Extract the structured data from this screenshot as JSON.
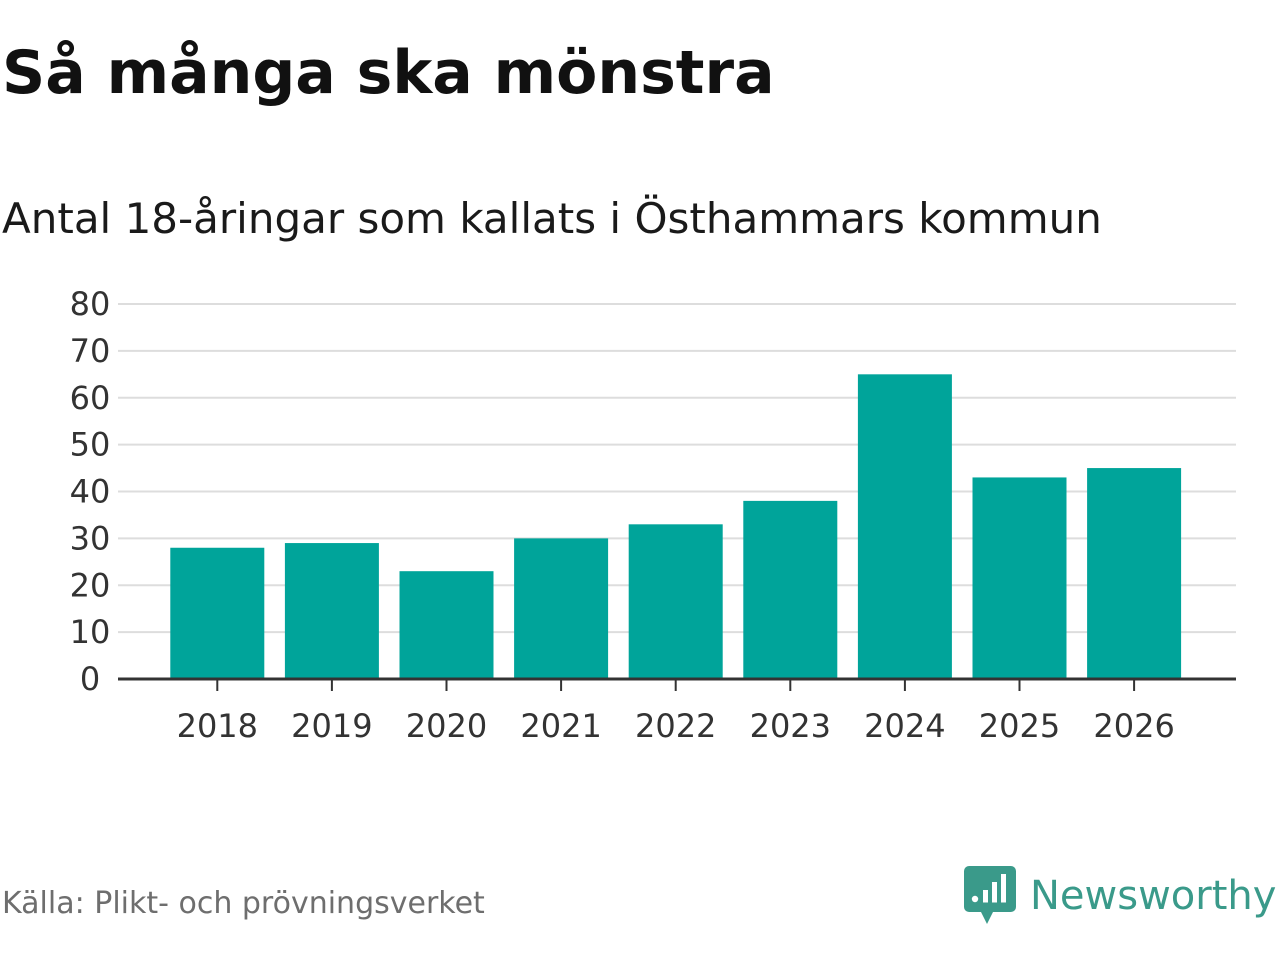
{
  "title": "Så många ska mönstra",
  "subtitle": "Antal 18-åringar som kallats i Östhammars kommun",
  "source": "Källa: Plikt- och prövningsverket",
  "brand": {
    "name": "Newsworthy",
    "icon": "newsworthy-bar-chart-speech-bubble-icon",
    "color": "#3a9a8a"
  },
  "colors": {
    "bar": "#00a49a",
    "grid": "#dddddd",
    "axis": "#333333",
    "tick_label": "#333333"
  },
  "chart_data": {
    "type": "bar",
    "title": "Så många ska mönstra",
    "subtitle": "Antal 18-åringar som kallats i Östhammars kommun",
    "xlabel": "",
    "ylabel": "",
    "categories": [
      "2018",
      "2019",
      "2020",
      "2021",
      "2022",
      "2023",
      "2024",
      "2025",
      "2026"
    ],
    "values": [
      28,
      29,
      23,
      30,
      33,
      38,
      65,
      43,
      45
    ],
    "ylim": [
      0,
      80
    ],
    "yticks": [
      0,
      10,
      20,
      30,
      40,
      50,
      60,
      70,
      80
    ],
    "grid": true,
    "legend": "none"
  }
}
